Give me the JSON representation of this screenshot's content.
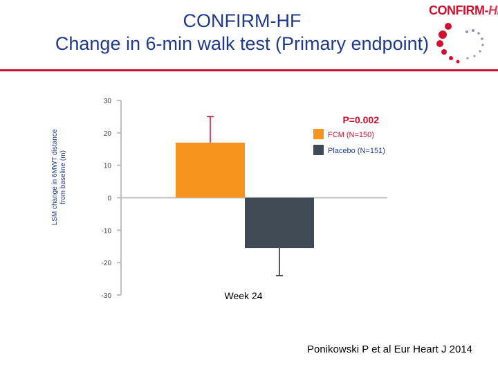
{
  "slide": {
    "title_line1": "CONFIRM-HF",
    "title_line2": "Change in 6-min walk test (Primary endpoint)",
    "footer": "Ponikowski P et al Eur Heart J 2014",
    "logo": {
      "main": "CONFIRM-",
      "accent": "HF"
    }
  },
  "chart_data": {
    "type": "bar",
    "categories": [
      "Week 24"
    ],
    "series": [
      {
        "name": "FCM (N=150)",
        "values": [
          17
        ],
        "error": [
          8
        ],
        "color": "#f7941d"
      },
      {
        "name": "Placebo (N=151)",
        "values": [
          -15.5
        ],
        "error": [
          8.5
        ],
        "color": "#414b56"
      }
    ],
    "ylabel": "LSM change in 6MWT distance from baseline (m)",
    "ylim": [
      -30,
      30
    ],
    "yticks": [
      -30,
      -20,
      -10,
      0,
      10,
      20,
      30
    ],
    "annotation": "P=0.002",
    "legend_position": "top-right",
    "grid": false
  }
}
